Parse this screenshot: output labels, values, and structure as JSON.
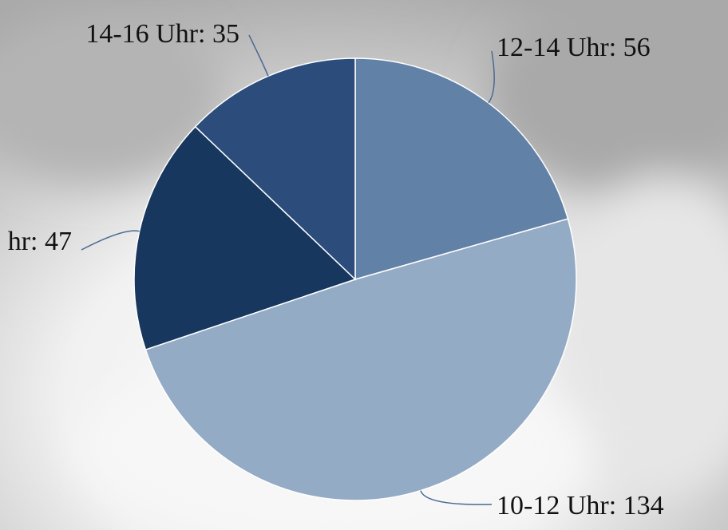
{
  "chart_data": {
    "type": "pie",
    "values": [
      56,
      134,
      47,
      35
    ],
    "value_labels": [
      "12-14 Uhr: 56",
      "10-12 Uhr: 134",
      "hr: 47",
      "14-16 Uhr: 35"
    ],
    "colors": [
      "#6281a7",
      "#94abc6",
      "#17375f",
      "#2c4d7b"
    ]
  }
}
